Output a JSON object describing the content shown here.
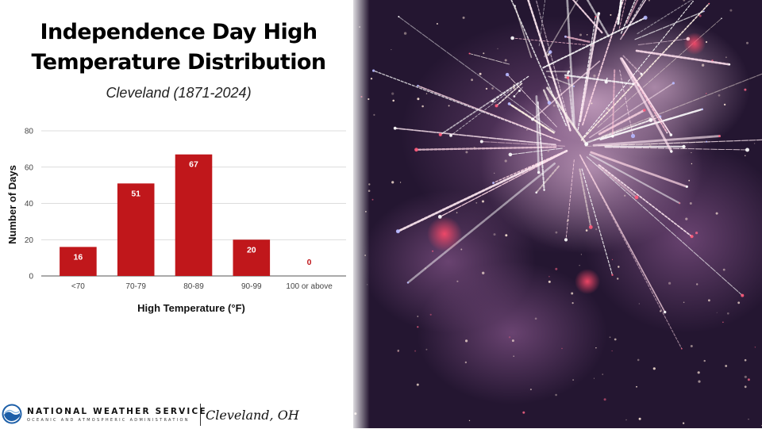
{
  "title_line1": "Independence Day High",
  "title_line2": "Temperature Distribution",
  "subtitle": "Cleveland (1871-2024)",
  "chart_data": {
    "type": "bar",
    "categories": [
      "<70",
      "70-79",
      "80-89",
      "90-99",
      "100 or above"
    ],
    "values": [
      16,
      51,
      67,
      20,
      0
    ],
    "xlabel": "High Temperature (°F)",
    "ylabel": "Number of Days",
    "ylim": [
      0,
      80
    ],
    "yticks": [
      0,
      20,
      40,
      60,
      80
    ],
    "bar_color": "#c0171b",
    "data_labels": true,
    "grid": true,
    "legend": "none"
  },
  "footer": {
    "agency_name": "NATIONAL WEATHER SERVICE",
    "agency_sub": "OCEANIC AND ATMOSPHERIC ADMINISTRATION",
    "office": "Cleveland, OH"
  },
  "photo": {
    "subject": "fireworks-photo"
  }
}
